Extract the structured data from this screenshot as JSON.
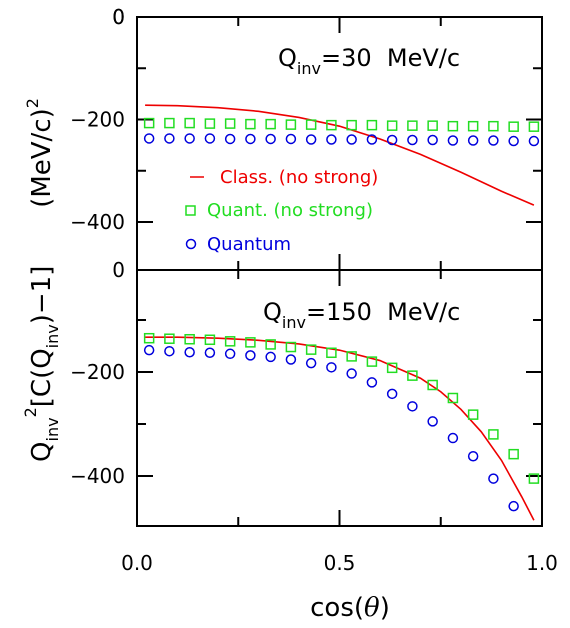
{
  "chart_data": [
    {
      "type": "scatter",
      "panel": "top",
      "title_main": "Q",
      "title_sub": "inv",
      "title_rest": "=30  MeV/c",
      "ylim": [
        -450,
        0
      ],
      "xlim": [
        0.0,
        1.0
      ],
      "yticks": [
        0,
        -200,
        -400
      ],
      "ytick_labels": [
        "0",
        "−200",
        "−400"
      ],
      "legend": [
        {
          "label": "Class. (no strong)",
          "color": "#ee0000",
          "marker": "line"
        },
        {
          "label": "Quant. (no strong)",
          "color": "#22dd22",
          "marker": "square"
        },
        {
          "label": "Quantum",
          "color": "#0000dd",
          "marker": "circle"
        }
      ],
      "series": [
        {
          "name": "Class. (no strong)",
          "style": "line",
          "color": "#ee0000",
          "x": [
            0.02,
            0.1,
            0.2,
            0.3,
            0.4,
            0.5,
            0.6,
            0.7,
            0.8,
            0.9,
            0.98
          ],
          "y": [
            -172,
            -173,
            -177,
            -184,
            -196,
            -213,
            -238,
            -268,
            -303,
            -340,
            -367
          ]
        },
        {
          "name": "Quant. (no strong)",
          "style": "square",
          "color": "#22dd22",
          "x": [
            0.03,
            0.08,
            0.13,
            0.18,
            0.23,
            0.28,
            0.33,
            0.38,
            0.43,
            0.48,
            0.53,
            0.58,
            0.63,
            0.68,
            0.73,
            0.78,
            0.83,
            0.88,
            0.93,
            0.98
          ],
          "y": [
            -207,
            -207,
            -207,
            -208,
            -208,
            -209,
            -209,
            -210,
            -210,
            -211,
            -211,
            -211,
            -212,
            -212,
            -212,
            -213,
            -213,
            -213,
            -214,
            -214
          ]
        },
        {
          "name": "Quantum",
          "style": "circle",
          "color": "#0000dd",
          "x": [
            0.03,
            0.08,
            0.13,
            0.18,
            0.23,
            0.28,
            0.33,
            0.38,
            0.43,
            0.48,
            0.53,
            0.58,
            0.63,
            0.68,
            0.73,
            0.78,
            0.83,
            0.88,
            0.93,
            0.98
          ],
          "y": [
            -237,
            -237,
            -237,
            -237,
            -238,
            -238,
            -238,
            -238,
            -239,
            -239,
            -239,
            -239,
            -240,
            -240,
            -240,
            -241,
            -241,
            -241,
            -242,
            -242
          ]
        }
      ]
    },
    {
      "type": "scatter",
      "panel": "bottom",
      "title_main": "Q",
      "title_sub": "inv",
      "title_rest": "=150  MeV/c",
      "ylim": [
        -500,
        0
      ],
      "xlim": [
        0.0,
        1.0
      ],
      "yticks": [
        -200,
        -400
      ],
      "ytick_labels": [
        "−200",
        "−400"
      ],
      "xticks": [
        0.0,
        0.5,
        1.0
      ],
      "xtick_labels": [
        "0.0",
        "0.5",
        "1.0"
      ],
      "series": [
        {
          "name": "Class. (no strong)",
          "style": "line",
          "color": "#ee0000",
          "x": [
            0.02,
            0.1,
            0.2,
            0.3,
            0.4,
            0.5,
            0.6,
            0.7,
            0.75,
            0.8,
            0.85,
            0.9,
            0.95,
            0.98
          ],
          "y": [
            -133,
            -133,
            -135,
            -139,
            -146,
            -158,
            -178,
            -212,
            -238,
            -272,
            -315,
            -370,
            -440,
            -485
          ]
        },
        {
          "name": "Quant. (no strong)",
          "style": "square",
          "color": "#22dd22",
          "x": [
            0.03,
            0.08,
            0.13,
            0.18,
            0.23,
            0.28,
            0.33,
            0.38,
            0.43,
            0.48,
            0.53,
            0.58,
            0.63,
            0.68,
            0.73,
            0.78,
            0.83,
            0.88,
            0.93,
            0.98
          ],
          "y": [
            -135,
            -136,
            -137,
            -138,
            -141,
            -143,
            -147,
            -152,
            -157,
            -163,
            -170,
            -180,
            -192,
            -207,
            -225,
            -250,
            -282,
            -320,
            -358,
            -405
          ]
        },
        {
          "name": "Quantum",
          "style": "circle",
          "color": "#0000dd",
          "x": [
            0.03,
            0.08,
            0.13,
            0.18,
            0.23,
            0.28,
            0.33,
            0.38,
            0.43,
            0.48,
            0.53,
            0.58,
            0.63,
            0.68,
            0.73,
            0.78,
            0.83,
            0.88,
            0.93
          ],
          "y": [
            -158,
            -160,
            -162,
            -163,
            -165,
            -168,
            -171,
            -176,
            -183,
            -191,
            -203,
            -220,
            -242,
            -266,
            -295,
            -327,
            -362,
            -405,
            -458
          ]
        }
      ]
    }
  ],
  "xaxis": {
    "label_pre": "cos(",
    "label_theta": "θ",
    "label_post": ")"
  },
  "yaxis": {
    "q": "Q",
    "inv1": "inv",
    "sq": "2",
    "mid1": "[C(Q",
    "inv2": "inv",
    "mid2": ")−1]",
    "gap": "       ",
    "unit": "(MeV/c)",
    "unit_sq": "2"
  }
}
